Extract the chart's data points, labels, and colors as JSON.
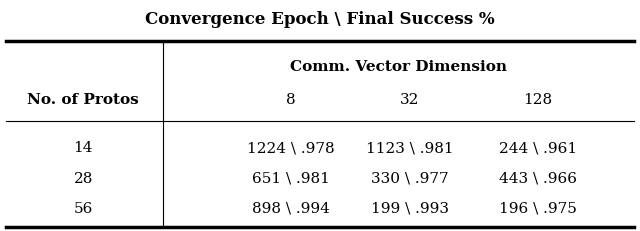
{
  "title": "Convergence Epoch \\ Final Success %",
  "col_group_label": "Comm. Vector Dimension",
  "row_header": "No. of Protos",
  "col_dims": [
    "8",
    "32",
    "128"
  ],
  "row_labels": [
    "14",
    "28",
    "56"
  ],
  "cells": [
    [
      "1224 \\ .978",
      "1123 \\ .981",
      "244 \\ .961"
    ],
    [
      "651 \\ .981",
      "330 \\ .977",
      "443 \\ .966"
    ],
    [
      "898 \\ .994",
      "199 \\ .993",
      "196 \\ .975"
    ]
  ],
  "bg_color": "#ffffff",
  "text_color": "#000000"
}
